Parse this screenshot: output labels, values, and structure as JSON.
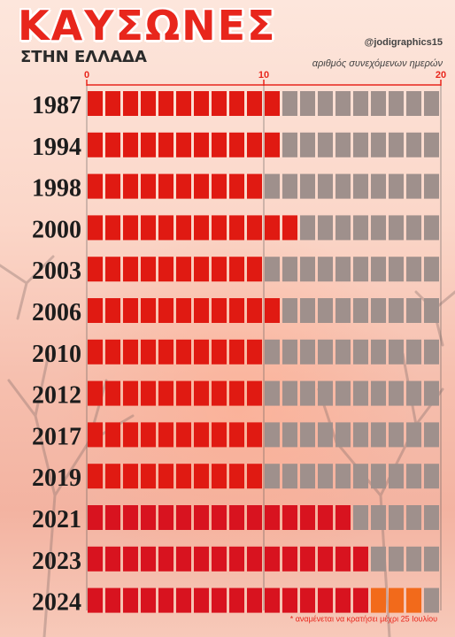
{
  "header": {
    "title": "ΚΑΥΣΩΝΕΣ",
    "subtitle": "ΣΤΗΝ ΕΛΛΑΔΑ",
    "credit": "@jodigraphics15"
  },
  "colors": {
    "filled": "#e01a12",
    "filled_recent": "#d8131f",
    "empty": "#9f908c",
    "expected": "#f26a1b",
    "axis": "#e8261c"
  },
  "chart_data": {
    "type": "bar",
    "orientation": "horizontal",
    "units": "blocks, one per day",
    "xlabel": "αριθμός συνεχόμενων ημερών",
    "ylabel": "",
    "xlim": [
      0,
      20
    ],
    "xticks": [
      0,
      10,
      20
    ],
    "grid": false,
    "categories": [
      "1987",
      "1994",
      "1998",
      "2000",
      "2003",
      "2006",
      "2010",
      "2012",
      "2017",
      "2019",
      "2021",
      "2023",
      "2024"
    ],
    "series": [
      {
        "values": [
          11,
          11,
          10,
          12,
          10,
          11,
          10,
          10,
          10,
          10,
          15,
          16,
          16
        ]
      },
      {
        "name": "αναμένεται να κρατήσει μέχρι 25 Ιουλίου",
        "values": [
          0,
          0,
          0,
          0,
          0,
          0,
          0,
          0,
          0,
          0,
          0,
          0,
          3
        ]
      }
    ],
    "annotations": [
      {
        "category": "2024",
        "text": "* αναμένεται να κρατήσει μέχρι 25 Ιουλίου"
      }
    ]
  }
}
